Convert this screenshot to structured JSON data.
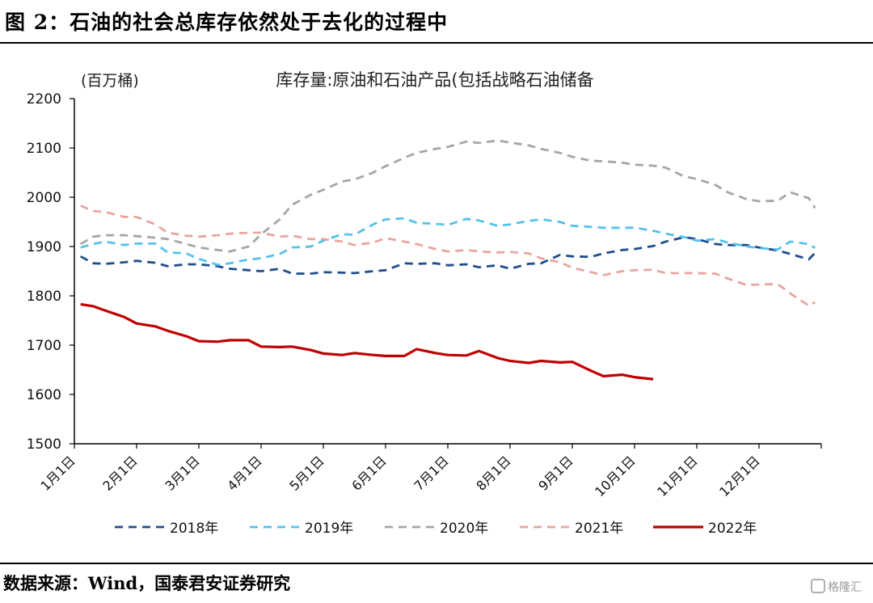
{
  "figure": {
    "title": "图 2：石油的社会总库存依然处于去化的过程中",
    "source": "数据来源：Wind，国泰君安证券研究",
    "watermark": "格隆汇"
  },
  "chart_data": {
    "type": "line",
    "title": "库存量:原油和石油产品(包括战略石油储备",
    "unit_label": "(百万桶)",
    "ylim": [
      1500,
      2200
    ],
    "yticks": [
      1500,
      1600,
      1700,
      1800,
      1900,
      2000,
      2100,
      2200
    ],
    "xlim": [
      0,
      12
    ],
    "xticks": [
      "1月1日",
      "2月1日",
      "3月1日",
      "4月1日",
      "5月1日",
      "6月1日",
      "7月1日",
      "8月1日",
      "9月1日",
      "10月1日",
      "11月1日",
      "12月1日"
    ],
    "grid": false,
    "legend_position": "bottom",
    "series": [
      {
        "name": "2018年",
        "color": "#1f4e8c",
        "dash": "dashed",
        "x": [
          0.1,
          0.3,
          0.5,
          0.8,
          1.0,
          1.3,
          1.5,
          1.8,
          2.0,
          2.3,
          2.5,
          2.8,
          3.0,
          3.3,
          3.5,
          3.8,
          4.0,
          4.3,
          4.5,
          4.8,
          5.0,
          5.3,
          5.5,
          5.8,
          6.0,
          6.3,
          6.5,
          6.8,
          7.0,
          7.3,
          7.5,
          7.8,
          8.0,
          8.3,
          8.5,
          8.8,
          9.0,
          9.3,
          9.5,
          9.8,
          10.0,
          10.3,
          10.5,
          10.8,
          11.0,
          11.3,
          11.5,
          11.8,
          11.9
        ],
        "y": [
          1880,
          1866,
          1865,
          1868,
          1871,
          1867,
          1860,
          1864,
          1864,
          1860,
          1855,
          1852,
          1850,
          1855,
          1845,
          1845,
          1848,
          1847,
          1846,
          1850,
          1852,
          1866,
          1865,
          1866,
          1862,
          1864,
          1858,
          1862,
          1855,
          1865,
          1866,
          1883,
          1880,
          1879,
          1886,
          1893,
          1895,
          1901,
          1910,
          1919,
          1915,
          1905,
          1903,
          1903,
          1898,
          1892,
          1885,
          1874,
          1887
        ]
      },
      {
        "name": "2019年",
        "color": "#55c2eb",
        "dash": "dashed",
        "x": [
          0.1,
          0.3,
          0.5,
          0.8,
          1.0,
          1.3,
          1.5,
          1.8,
          2.0,
          2.3,
          2.5,
          2.8,
          3.0,
          3.3,
          3.5,
          3.8,
          4.0,
          4.3,
          4.5,
          4.8,
          5.0,
          5.3,
          5.5,
          5.8,
          6.0,
          6.3,
          6.5,
          6.8,
          7.0,
          7.3,
          7.5,
          7.8,
          8.0,
          8.3,
          8.5,
          8.8,
          9.0,
          9.3,
          9.5,
          9.8,
          10.0,
          10.3,
          10.5,
          10.8,
          11.0,
          11.3,
          11.5,
          11.8,
          11.9
        ],
        "y": [
          1898,
          1905,
          1910,
          1903,
          1906,
          1906,
          1888,
          1886,
          1875,
          1863,
          1866,
          1874,
          1876,
          1885,
          1898,
          1900,
          1912,
          1925,
          1924,
          1945,
          1955,
          1957,
          1948,
          1946,
          1944,
          1956,
          1953,
          1942,
          1945,
          1952,
          1955,
          1950,
          1942,
          1940,
          1938,
          1938,
          1938,
          1932,
          1926,
          1919,
          1912,
          1915,
          1908,
          1900,
          1897,
          1894,
          1910,
          1905,
          1897
        ]
      },
      {
        "name": "2020年",
        "color": "#a6a6a6",
        "dash": "dashed",
        "x": [
          0.1,
          0.3,
          0.5,
          0.8,
          1.0,
          1.3,
          1.5,
          1.8,
          2.0,
          2.3,
          2.5,
          2.8,
          3.0,
          3.3,
          3.5,
          3.8,
          4.0,
          4.3,
          4.5,
          4.8,
          5.0,
          5.3,
          5.5,
          5.8,
          6.0,
          6.3,
          6.5,
          6.8,
          7.0,
          7.3,
          7.5,
          7.8,
          8.0,
          8.3,
          8.5,
          8.8,
          9.0,
          9.3,
          9.5,
          9.8,
          10.0,
          10.3,
          10.5,
          10.8,
          11.0,
          11.3,
          11.5,
          11.8,
          11.9
        ],
        "y": [
          1905,
          1920,
          1923,
          1923,
          1921,
          1918,
          1915,
          1905,
          1898,
          1893,
          1890,
          1900,
          1925,
          1955,
          1985,
          2005,
          2015,
          2032,
          2036,
          2050,
          2063,
          2080,
          2090,
          2098,
          2102,
          2113,
          2110,
          2115,
          2111,
          2105,
          2098,
          2090,
          2082,
          2074,
          2073,
          2070,
          2066,
          2064,
          2060,
          2042,
          2037,
          2025,
          2010,
          1996,
          1992,
          1993,
          2010,
          1998,
          1978
        ]
      },
      {
        "name": "2021年",
        "color": "#e8a5a0",
        "dash": "dashed",
        "x": [
          0.1,
          0.3,
          0.5,
          0.8,
          1.0,
          1.3,
          1.5,
          1.8,
          2.0,
          2.3,
          2.5,
          2.8,
          3.0,
          3.3,
          3.5,
          3.8,
          4.0,
          4.3,
          4.5,
          4.8,
          5.0,
          5.3,
          5.5,
          5.8,
          6.0,
          6.3,
          6.5,
          6.8,
          7.0,
          7.3,
          7.5,
          7.8,
          8.0,
          8.3,
          8.5,
          8.8,
          9.0,
          9.3,
          9.5,
          9.8,
          10.0,
          10.3,
          10.5,
          10.8,
          11.0,
          11.3,
          11.5,
          11.8,
          11.9
        ],
        "y": [
          1983,
          1972,
          1970,
          1960,
          1960,
          1945,
          1928,
          1922,
          1920,
          1923,
          1926,
          1928,
          1928,
          1920,
          1922,
          1915,
          1915,
          1910,
          1903,
          1908,
          1917,
          1910,
          1905,
          1895,
          1890,
          1893,
          1890,
          1888,
          1889,
          1886,
          1876,
          1868,
          1857,
          1848,
          1842,
          1850,
          1852,
          1853,
          1846,
          1846,
          1846,
          1845,
          1835,
          1822,
          1823,
          1824,
          1805,
          1780,
          1787
        ]
      },
      {
        "name": "2022年",
        "color": "#c00000",
        "dash": "solid",
        "x": [
          0.1,
          0.3,
          0.5,
          0.8,
          1.0,
          1.3,
          1.5,
          1.8,
          2.0,
          2.3,
          2.5,
          2.8,
          3.0,
          3.3,
          3.5,
          3.8,
          4.0,
          4.3,
          4.5,
          4.8,
          5.0,
          5.3,
          5.5,
          5.8,
          6.0,
          6.3,
          6.5,
          6.8,
          7.0,
          7.3,
          7.5,
          7.8,
          8.0,
          8.3,
          8.5,
          8.8,
          9.0,
          9.3
        ],
        "y": [
          1783,
          1779,
          1770,
          1757,
          1744,
          1738,
          1729,
          1718,
          1708,
          1707,
          1710,
          1710,
          1697,
          1696,
          1697,
          1690,
          1683,
          1680,
          1684,
          1680,
          1678,
          1678,
          1692,
          1684,
          1680,
          1679,
          1688,
          1674,
          1668,
          1664,
          1668,
          1665,
          1666,
          1648,
          1637,
          1640,
          1635,
          1631
        ]
      }
    ]
  }
}
